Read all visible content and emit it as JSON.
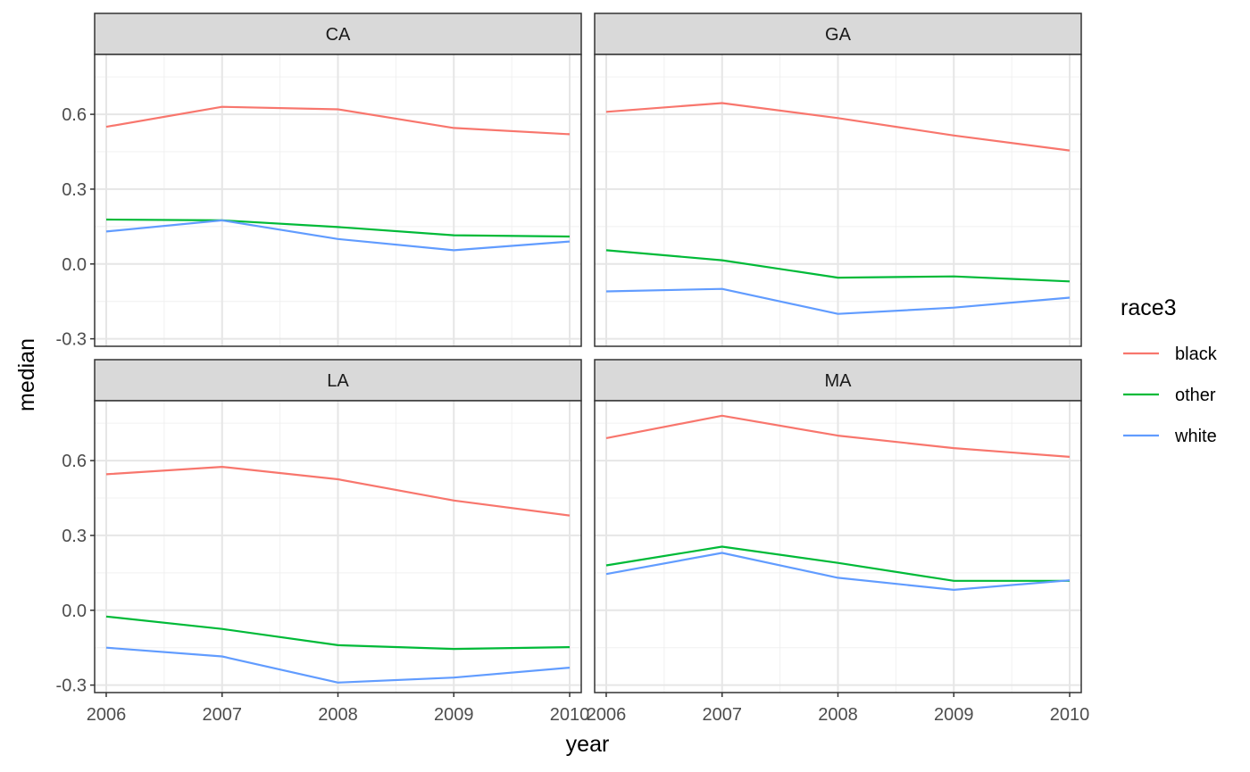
{
  "chart_data": {
    "type": "line",
    "xlabel": "year",
    "ylabel": "median",
    "legend": {
      "title": "race3",
      "position": "right"
    },
    "x": [
      2006,
      2007,
      2008,
      2009,
      2010
    ],
    "xlim": [
      2005.9,
      2010.1
    ],
    "ylim": [
      -0.33,
      0.84
    ],
    "yticks": [
      -0.3,
      0.0,
      0.3,
      0.6
    ],
    "ytick_labels": [
      "-0.3",
      "0.0",
      "0.3",
      "0.6"
    ],
    "xtick_labels": [
      "2006",
      "2007",
      "2008",
      "2009",
      "2010"
    ],
    "grid": true,
    "colors": {
      "black": "#F8766D",
      "other": "#00BA38",
      "white": "#619CFF"
    },
    "series_names": [
      "black",
      "other",
      "white"
    ],
    "panels": [
      {
        "label": "CA",
        "series": [
          {
            "name": "black",
            "values": [
              0.55,
              0.63,
              0.62,
              0.545,
              0.52
            ]
          },
          {
            "name": "other",
            "values": [
              0.178,
              0.175,
              0.148,
              0.115,
              0.11
            ]
          },
          {
            "name": "white",
            "values": [
              0.13,
              0.175,
              0.1,
              0.055,
              0.09
            ]
          }
        ]
      },
      {
        "label": "GA",
        "series": [
          {
            "name": "black",
            "values": [
              0.61,
              0.645,
              0.585,
              0.515,
              0.455
            ]
          },
          {
            "name": "other",
            "values": [
              0.055,
              0.015,
              -0.055,
              -0.05,
              -0.07
            ]
          },
          {
            "name": "white",
            "values": [
              -0.11,
              -0.1,
              -0.2,
              -0.175,
              -0.135
            ]
          }
        ]
      },
      {
        "label": "LA",
        "series": [
          {
            "name": "black",
            "values": [
              0.545,
              0.575,
              0.525,
              0.44,
              0.38
            ]
          },
          {
            "name": "other",
            "values": [
              -0.025,
              -0.075,
              -0.14,
              -0.155,
              -0.148
            ]
          },
          {
            "name": "white",
            "values": [
              -0.15,
              -0.185,
              -0.29,
              -0.27,
              -0.23
            ]
          }
        ]
      },
      {
        "label": "MA",
        "series": [
          {
            "name": "black",
            "values": [
              0.69,
              0.78,
              0.7,
              0.65,
              0.615
            ]
          },
          {
            "name": "other",
            "values": [
              0.18,
              0.255,
              0.19,
              0.118,
              0.118
            ]
          },
          {
            "name": "white",
            "values": [
              0.145,
              0.23,
              0.13,
              0.082,
              0.12
            ]
          }
        ]
      }
    ]
  }
}
